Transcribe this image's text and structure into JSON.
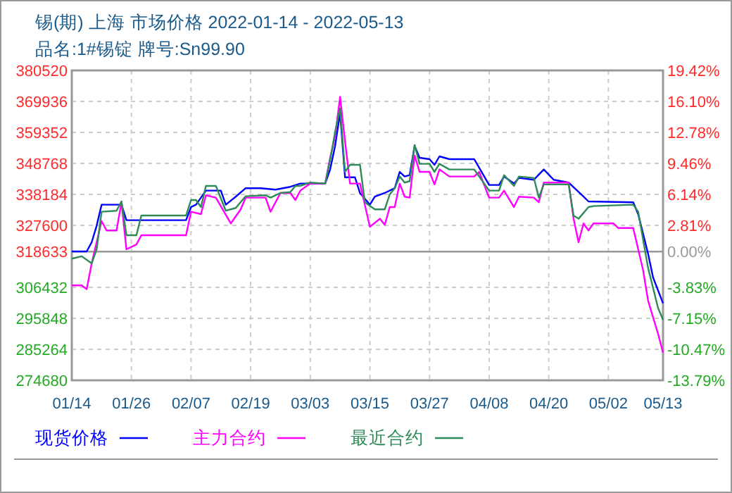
{
  "chart_data": {
    "type": "line",
    "title": "锡(期) 上海 市场价格 2022-01-14 - 2022-05-13",
    "subtitle": "品名:1#锡锭 牌号:Sn99.90",
    "xlim": [
      "2022-01-14",
      "2022-05-13"
    ],
    "xticks": [
      {
        "value": "2022-01-14",
        "label": "01/14"
      },
      {
        "value": "2022-01-26",
        "label": "01/26"
      },
      {
        "value": "2022-02-07",
        "label": "02/07"
      },
      {
        "value": "2022-02-19",
        "label": "02/19"
      },
      {
        "value": "2022-03-03",
        "label": "03/03"
      },
      {
        "value": "2022-03-15",
        "label": "03/15"
      },
      {
        "value": "2022-03-27",
        "label": "03/27"
      },
      {
        "value": "2022-04-08",
        "label": "04/08"
      },
      {
        "value": "2022-04-20",
        "label": "04/20"
      },
      {
        "value": "2022-05-02",
        "label": "05/02"
      },
      {
        "value": "2022-05-13",
        "label": "05/13"
      }
    ],
    "ylim": [
      274680,
      380520
    ],
    "yticks": [
      274680,
      285264,
      295848,
      306432,
      318633,
      327600,
      338184,
      348768,
      359352,
      369936,
      380520
    ],
    "y2lim": [
      -13.79,
      19.42
    ],
    "y2ticks": [
      {
        "value": -13.79,
        "label": "-13.79%"
      },
      {
        "value": -10.47,
        "label": "-10.47%"
      },
      {
        "value": -7.15,
        "label": "-7.15%"
      },
      {
        "value": -3.83,
        "label": "-3.83%"
      },
      {
        "value": 0,
        "label": "0.00%"
      },
      {
        "value": 2.81,
        "label": "2.81%"
      },
      {
        "value": 6.14,
        "label": "6.14%"
      },
      {
        "value": 9.46,
        "label": "9.46%"
      },
      {
        "value": 12.78,
        "label": "12.78%"
      },
      {
        "value": 16.1,
        "label": "16.10%"
      },
      {
        "value": 19.42,
        "label": "19.42%"
      }
    ],
    "grid": true,
    "legend": "bottom",
    "ref_lines": [
      {
        "axis": "y2",
        "value": 0,
        "color": "#999999"
      }
    ],
    "series": [
      {
        "name": "现货价格",
        "color": "#0000ff",
        "x": [
          "2022-01-14",
          "2022-01-17",
          "2022-01-18",
          "2022-01-19",
          "2022-01-20",
          "2022-01-24",
          "2022-01-25",
          "2022-02-06",
          "2022-02-07",
          "2022-02-08",
          "2022-02-10",
          "2022-02-13",
          "2022-02-14",
          "2022-02-16",
          "2022-02-18",
          "2022-02-21",
          "2022-02-24",
          "2022-02-27",
          "2022-03-01",
          "2022-03-06",
          "2022-03-07",
          "2022-03-08",
          "2022-03-09",
          "2022-03-10",
          "2022-03-12",
          "2022-03-13",
          "2022-03-15",
          "2022-03-16",
          "2022-03-18",
          "2022-03-20",
          "2022-03-21",
          "2022-03-22",
          "2022-03-23",
          "2022-03-24",
          "2022-03-25",
          "2022-03-27",
          "2022-03-28",
          "2022-03-29",
          "2022-03-31",
          "2022-04-05",
          "2022-04-08",
          "2022-04-10",
          "2022-04-11",
          "2022-04-13",
          "2022-04-14",
          "2022-04-17",
          "2022-04-19",
          "2022-04-21",
          "2022-04-24",
          "2022-04-27",
          "2022-04-28",
          "2022-05-07",
          "2022-05-08",
          "2022-05-10",
          "2022-05-11",
          "2022-05-13"
        ],
        "values": [
          318700,
          318700,
          321830,
          327450,
          334670,
          334670,
          329380,
          329380,
          333850,
          334670,
          339480,
          339480,
          334670,
          337410,
          340300,
          340300,
          339820,
          340780,
          341890,
          341890,
          346700,
          354730,
          366000,
          344000,
          344000,
          338670,
          334670,
          337410,
          338670,
          340300,
          345880,
          344290,
          344770,
          354730,
          350690,
          350210,
          348290,
          351170,
          350210,
          350210,
          341410,
          341410,
          344290,
          341890,
          343810,
          343170,
          346700,
          343170,
          342220,
          337410,
          335780,
          335490,
          331450,
          317830,
          309800,
          301000
        ]
      },
      {
        "name": "主力合约",
        "color": "#ff00ff",
        "x": [
          "2022-01-14",
          "2022-01-16",
          "2022-01-17",
          "2022-01-18",
          "2022-01-20",
          "2022-01-21",
          "2022-01-23",
          "2022-01-24",
          "2022-01-25",
          "2022-01-27",
          "2022-01-28",
          "2022-02-06",
          "2022-02-07",
          "2022-02-09",
          "2022-02-10",
          "2022-02-12",
          "2022-02-15",
          "2022-02-17",
          "2022-02-18",
          "2022-02-22",
          "2022-02-23",
          "2022-02-25",
          "2022-02-27",
          "2022-02-28",
          "2022-03-01",
          "2022-03-03",
          "2022-03-06",
          "2022-03-07",
          "2022-03-08",
          "2022-03-09",
          "2022-03-10",
          "2022-03-11",
          "2022-03-13",
          "2022-03-15",
          "2022-03-17",
          "2022-03-18",
          "2022-03-19",
          "2022-03-20",
          "2022-03-21",
          "2022-03-22",
          "2022-03-23",
          "2022-03-24",
          "2022-03-25",
          "2022-03-27",
          "2022-03-28",
          "2022-03-29",
          "2022-03-31",
          "2022-04-05",
          "2022-04-06",
          "2022-04-08",
          "2022-04-10",
          "2022-04-11",
          "2022-04-13",
          "2022-04-14",
          "2022-04-17",
          "2022-04-18",
          "2022-04-19",
          "2022-04-24",
          "2022-04-25",
          "2022-04-26",
          "2022-04-27",
          "2022-04-28",
          "2022-04-29",
          "2022-05-03",
          "2022-05-04",
          "2022-05-07",
          "2022-05-09",
          "2022-05-10",
          "2022-05-12",
          "2022-05-13"
        ],
        "values": [
          307100,
          307100,
          305800,
          314610,
          329040,
          325870,
          325870,
          335490,
          319420,
          321060,
          324230,
          324230,
          332270,
          331450,
          337890,
          337080,
          328270,
          333080,
          337080,
          337080,
          332270,
          338670,
          338670,
          336260,
          339480,
          341890,
          341890,
          350690,
          357910,
          371500,
          356320,
          341890,
          341890,
          327120,
          329860,
          327770,
          333850,
          333850,
          341890,
          337410,
          337080,
          351510,
          345880,
          345880,
          341570,
          346700,
          344290,
          344290,
          345880,
          337080,
          337080,
          339480,
          333850,
          337410,
          337080,
          335490,
          342220,
          342220,
          329860,
          321830,
          328270,
          325870,
          328270,
          328270,
          326680,
          326680,
          312200,
          301830,
          290550,
          284160
        ]
      },
      {
        "name": "最近合约",
        "color": "#2e8b57",
        "x": [
          "2022-01-14",
          "2022-01-16",
          "2022-01-18",
          "2022-01-19",
          "2022-01-20",
          "2022-01-23",
          "2022-01-24",
          "2022-01-25",
          "2022-01-27",
          "2022-01-28",
          "2022-02-06",
          "2022-02-07",
          "2022-02-08",
          "2022-02-09",
          "2022-02-10",
          "2022-02-12",
          "2022-02-14",
          "2022-02-16",
          "2022-02-18",
          "2022-02-22",
          "2022-02-23",
          "2022-02-25",
          "2022-02-27",
          "2022-02-28",
          "2022-03-01",
          "2022-03-03",
          "2022-03-06",
          "2022-03-07",
          "2022-03-08",
          "2022-03-09",
          "2022-03-10",
          "2022-03-11",
          "2022-03-13",
          "2022-03-14",
          "2022-03-16",
          "2022-03-18",
          "2022-03-19",
          "2022-03-20",
          "2022-03-21",
          "2022-03-22",
          "2022-03-23",
          "2022-03-24",
          "2022-03-25",
          "2022-03-27",
          "2022-03-28",
          "2022-03-29",
          "2022-03-31",
          "2022-04-05",
          "2022-04-08",
          "2022-04-10",
          "2022-04-11",
          "2022-04-13",
          "2022-04-14",
          "2022-04-17",
          "2022-04-18",
          "2022-04-19",
          "2022-04-24",
          "2022-04-25",
          "2022-04-26",
          "2022-04-28",
          "2022-04-29",
          "2022-05-07",
          "2022-05-08",
          "2022-05-10",
          "2022-05-12",
          "2022-05-13"
        ],
        "values": [
          316240,
          317050,
          314610,
          319420,
          332270,
          332600,
          335780,
          324230,
          324230,
          330980,
          330980,
          336260,
          336260,
          333850,
          341080,
          341080,
          332600,
          333560,
          337560,
          337890,
          337080,
          338670,
          339000,
          341080,
          341080,
          342220,
          341890,
          349930,
          359540,
          367530,
          345880,
          348290,
          348290,
          335490,
          333080,
          333080,
          338190,
          340300,
          344290,
          342220,
          342700,
          355050,
          348610,
          348610,
          345880,
          348610,
          346700,
          346700,
          339480,
          339480,
          344770,
          341080,
          344290,
          343810,
          337080,
          341570,
          341570,
          330980,
          329860,
          333850,
          334190,
          334670,
          332270,
          313020,
          299400,
          295370
        ]
      }
    ]
  }
}
